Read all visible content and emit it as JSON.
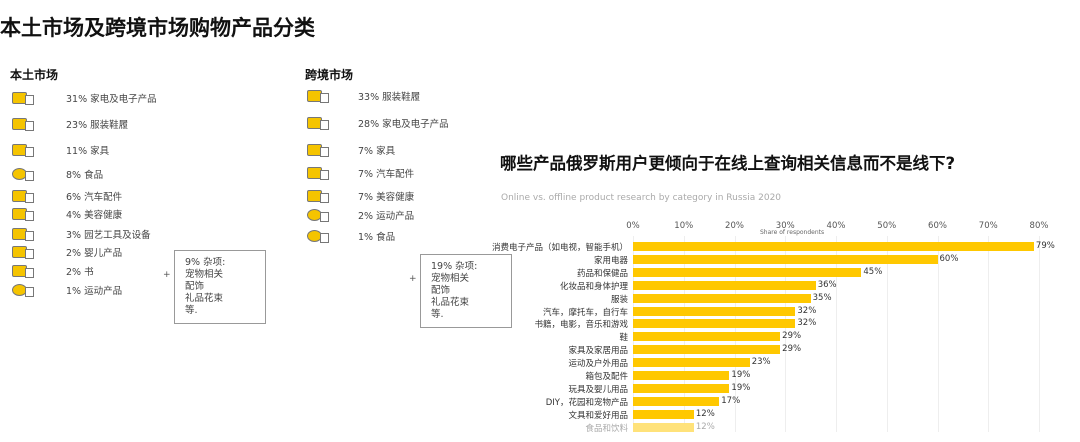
{
  "title": "本土市场及跨境市场购物产品分类",
  "domestic": {
    "heading": "本土市场",
    "items": [
      {
        "text": "31% 家电及电子产品",
        "icon": "tv-appliance-icon"
      },
      {
        "text": "23% 服装鞋履",
        "icon": "clothing-shoes-icon"
      },
      {
        "text": "11% 家具",
        "icon": "furniture-bed-icon"
      },
      {
        "text": "8%  食品",
        "icon": "food-plate-icon"
      },
      {
        "text": "6%  汽车配件",
        "icon": "tire-oil-icon"
      },
      {
        "text": "4%  美容健康",
        "icon": "beauty-icon"
      },
      {
        "text": "3%  园艺工具及设备",
        "icon": "garden-icon"
      },
      {
        "text": "2% 婴儿产品",
        "icon": "baby-icon"
      },
      {
        "text": "2%  书",
        "icon": "book-icon"
      },
      {
        "text": "1%  运动产品",
        "icon": "ball-icon"
      }
    ],
    "misc": [
      "9% 杂项:",
      "宠物相关",
      "配饰",
      "礼品花束",
      "等."
    ],
    "plus": "+"
  },
  "crossborder": {
    "heading": "跨境市场",
    "items": [
      {
        "text": "33% 服装鞋履",
        "icon": "clothing-shoes-icon"
      },
      {
        "text": "28% 家电及电子产品",
        "icon": "tv-appliance-icon"
      },
      {
        "text": "7% 家具",
        "icon": "furniture-bed-icon"
      },
      {
        "text": "7%  汽车配件",
        "icon": "tire-oil-icon"
      },
      {
        "text": "7%  美容健康",
        "icon": "beauty-icon"
      },
      {
        "text": "2%  运动产品",
        "icon": "ball-icon"
      },
      {
        "text": "1%  食品",
        "icon": "food-plate-icon"
      }
    ],
    "misc": [
      "19% 杂项:",
      "宠物相关",
      "配饰",
      "礼品花束",
      "等."
    ],
    "plus": "+"
  },
  "chart_data": {
    "type": "bar",
    "orientation": "horizontal",
    "title": "哪些产品俄罗斯用户更倾向于在线上查询相关信息而不是线下?",
    "subtitle": "Online vs. offline product research by category in Russia 2020",
    "xlabel": "Share of respondents",
    "xlim": [
      0,
      80
    ],
    "ticks": [
      "0%",
      "10%",
      "20%",
      "30%",
      "40%",
      "50%",
      "60%",
      "70%",
      "80%"
    ],
    "grid": true,
    "bar_color": "#ffc800",
    "categories": [
      "消费电子产品（如电视，智能手机）",
      "家用电器",
      "药品和保健品",
      "化妆品和身体护理",
      "服装",
      "汽车，摩托车，自行车",
      "书籍，电影，音乐和游戏",
      "鞋",
      "家具及家居用品",
      "运动及户外用品",
      "箱包及配件",
      "玩具及婴儿用品",
      "DIY，花园和宠物产品",
      "文具和爱好用品",
      "食品和饮料"
    ],
    "values": [
      79,
      60,
      45,
      36,
      35,
      32,
      32,
      29,
      29,
      23,
      19,
      19,
      17,
      12,
      12
    ],
    "labels": [
      "79%",
      "60%",
      "45%",
      "36%",
      "35%",
      "32%",
      "32%",
      "29%",
      "29%",
      "23%",
      "19%",
      "19%",
      "17%",
      "12%",
      "12%"
    ]
  }
}
